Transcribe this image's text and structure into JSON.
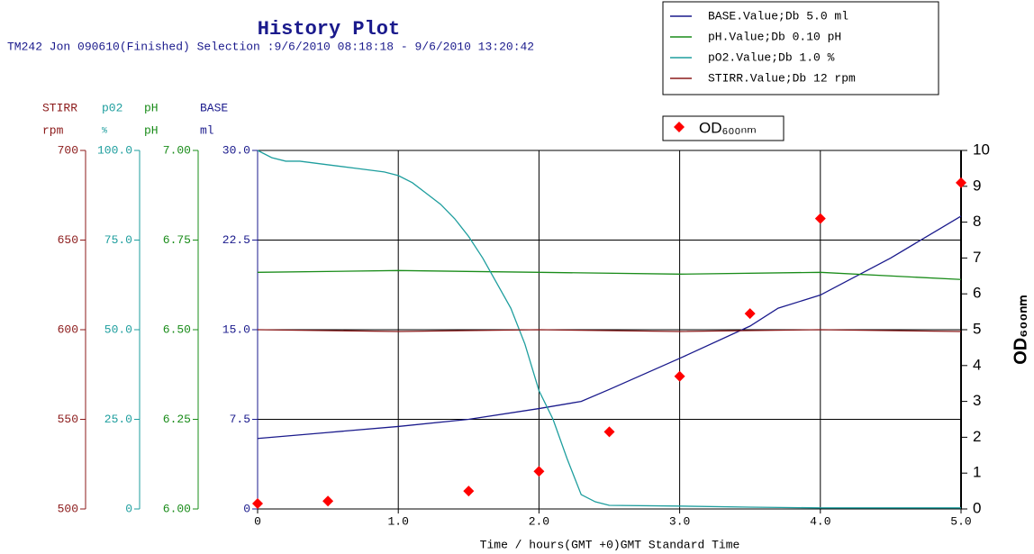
{
  "chart_data": {
    "type": "line",
    "title": "History Plot",
    "subtitle": "TM242 Jon 090610(Finished) Selection :9/6/2010 08:18:18 - 9/6/2010 13:20:42",
    "x_label": "Time / hours(GMT +0)GMT Standard Time",
    "xlim": [
      0,
      5
    ],
    "xticks": [
      0,
      {
        "value": 1,
        "label": "1.0"
      },
      {
        "value": 2,
        "label": "2.0"
      },
      {
        "value": 3,
        "label": "3.0"
      },
      {
        "value": 4,
        "label": "4.0"
      },
      {
        "value": 5,
        "label": "5.0"
      }
    ],
    "grid": true,
    "axes": [
      {
        "name": "STIRR",
        "unit": "rpm",
        "color": "#8b1a1a",
        "ylim": [
          500,
          700
        ],
        "yticks": [
          500,
          550,
          600,
          650,
          700
        ]
      },
      {
        "name": "p02",
        "unit": "%",
        "color": "#1e9e9e",
        "ylim": [
          0,
          100
        ],
        "yticks": [
          0,
          {
            "value": 25,
            "label": "25.0"
          },
          {
            "value": 50,
            "label": "50.0"
          },
          {
            "value": 75,
            "label": "75.0"
          },
          {
            "value": 100,
            "label": "100.0"
          }
        ]
      },
      {
        "name": "pH",
        "unit": "pH",
        "color": "#1a8c1a",
        "ylim": [
          6,
          7
        ],
        "yticks": [
          {
            "value": 6,
            "label": "6.00"
          },
          6.25,
          {
            "value": 6.5,
            "label": "6.50"
          },
          6.75,
          {
            "value": 7,
            "label": "7.00"
          }
        ]
      },
      {
        "name": "BASE",
        "unit": "ml",
        "color": "#1a1a8c",
        "ylim": [
          0,
          30
        ],
        "yticks": [
          0,
          7.5,
          {
            "value": 15,
            "label": "15.0"
          },
          22.5,
          {
            "value": 30,
            "label": "30.0"
          }
        ]
      }
    ],
    "y2lim": [
      0,
      10
    ],
    "y2ticks": [
      0,
      1,
      2,
      3,
      4,
      5,
      6,
      7,
      8,
      9,
      10
    ],
    "y2_label": "OD₆₀₀ₙₘ",
    "series": [
      {
        "name": "BASE.Value;Db 5.0 ml",
        "color": "#1a1a8c",
        "axis": 3,
        "x": [
          0,
          0.5,
          1.0,
          1.5,
          2.0,
          2.3,
          2.5,
          3.0,
          3.5,
          3.7,
          4.0,
          4.5,
          5.0
        ],
        "values": [
          5.9,
          6.4,
          6.9,
          7.5,
          8.4,
          9.0,
          10.0,
          12.6,
          15.3,
          16.8,
          17.9,
          21.0,
          24.5
        ]
      },
      {
        "name": "pH.Value;Db 0.10 pH",
        "color": "#1a8c1a",
        "axis": 2,
        "x": [
          0,
          1,
          2,
          3,
          4,
          5
        ],
        "values": [
          6.66,
          6.665,
          6.66,
          6.655,
          6.66,
          6.64
        ]
      },
      {
        "name": "pO2.Value;Db 1.0 %",
        "color": "#1e9e9e",
        "axis": 1,
        "x": [
          0,
          0.1,
          0.2,
          0.3,
          0.5,
          0.7,
          0.9,
          1.0,
          1.1,
          1.2,
          1.3,
          1.4,
          1.5,
          1.6,
          1.7,
          1.8,
          1.9,
          2.0,
          2.1,
          2.2,
          2.3,
          2.4,
          2.5,
          3.0,
          3.5,
          4.0,
          4.5,
          5.0
        ],
        "values": [
          100,
          98,
          97,
          97,
          96,
          95,
          94,
          93,
          91,
          88,
          85,
          81,
          76,
          70,
          63,
          56,
          46,
          33,
          25,
          14,
          4,
          2,
          1,
          0.8,
          0.5,
          0.3,
          0.3,
          0.3
        ]
      },
      {
        "name": "STIRR.Value;Db 12 rpm",
        "color": "#8b1a1a",
        "axis": 0,
        "x": [
          0,
          1,
          2,
          3,
          4,
          5
        ],
        "values": [
          600,
          599,
          600,
          599,
          600,
          599
        ]
      },
      {
        "name": "OD₆₀₀ₙₘ",
        "color": "#ff0000",
        "axis": "y2",
        "type": "scatter",
        "x": [
          0,
          0.5,
          1.5,
          2.0,
          2.5,
          3.0,
          3.5,
          4.0,
          5.0
        ],
        "values": [
          0.15,
          0.22,
          0.5,
          1.05,
          2.15,
          3.7,
          5.45,
          8.1,
          9.1
        ]
      }
    ]
  }
}
